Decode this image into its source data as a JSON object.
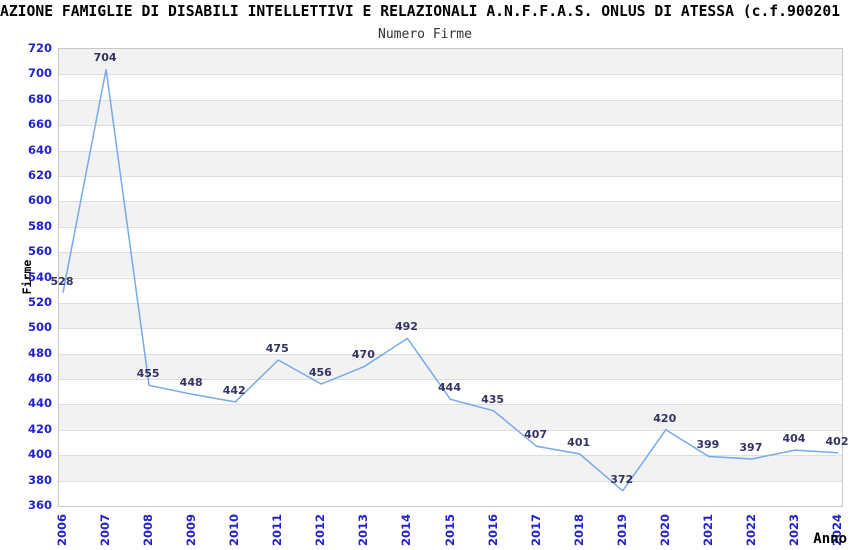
{
  "header": {
    "title": "AZIONE FAMIGLIE DI DISABILI INTELLETTIVI E RELAZIONALI A.N.F.F.A.S. ONLUS DI ATESSA (c.f.900201",
    "subtitle": "Numero Firme"
  },
  "chart_data": {
    "type": "line",
    "title": "Numero Firme",
    "xlabel": "Anno",
    "ylabel": "Firme",
    "categories": [
      "2006",
      "2007",
      "2008",
      "2009",
      "2010",
      "2011",
      "2012",
      "2013",
      "2014",
      "2015",
      "2016",
      "2017",
      "2018",
      "2019",
      "2020",
      "2021",
      "2022",
      "2023",
      "2024"
    ],
    "series": [
      {
        "name": "Firme",
        "values": [
          528,
          704,
          455,
          448,
          442,
          475,
          456,
          470,
          492,
          444,
          435,
          407,
          401,
          372,
          420,
          399,
          397,
          404,
          402
        ]
      }
    ],
    "ylim": [
      360,
      720
    ],
    "ytick_step": 20,
    "grid": true,
    "legend_position": "none",
    "show_data_labels": true,
    "colors": {
      "line": "#79a9e8",
      "tick_labels": "#2222cc",
      "data_labels": "#333366",
      "band_alt": "#f2f2f2",
      "band_main": "#ffffff",
      "gridline": "#dedede",
      "plot_border": "#c8c8c8"
    }
  }
}
